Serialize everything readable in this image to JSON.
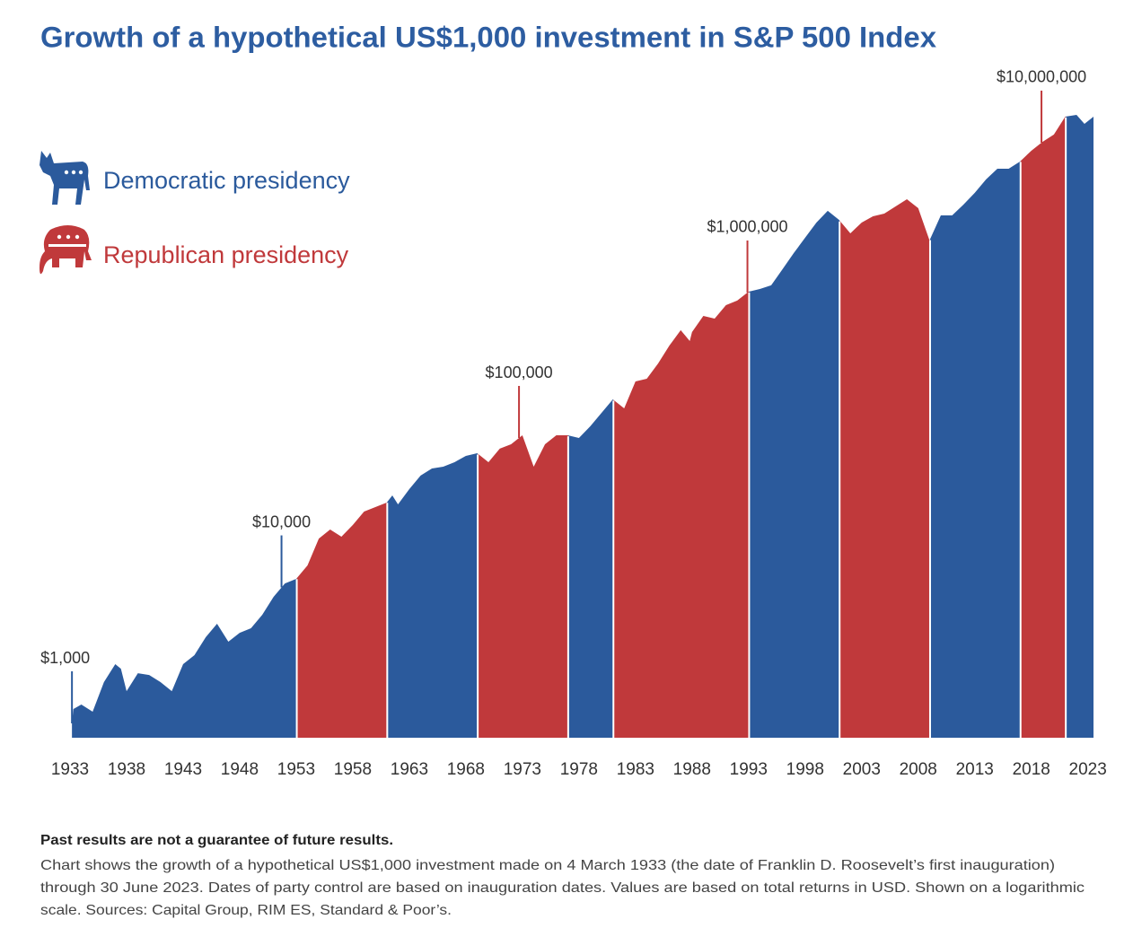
{
  "chart_data": {
    "type": "area",
    "title": "Growth of a hypothetical US$1,000 investment in S&P 500 Index",
    "yscale": "log",
    "xlim": [
      1933,
      2023.5
    ],
    "ylim": [
      800,
      13400000
    ],
    "xticks": [
      1933,
      1938,
      1943,
      1948,
      1953,
      1958,
      1963,
      1968,
      1973,
      1978,
      1983,
      1988,
      1993,
      1998,
      2003,
      2008,
      2013,
      2018,
      2023
    ],
    "x": [
      1933.17,
      1933.3,
      1934,
      1935,
      1936,
      1937,
      1937.5,
      1938,
      1939,
      1940,
      1941,
      1942,
      1943,
      1944,
      1945,
      1946,
      1947,
      1948,
      1949,
      1950,
      1951,
      1952,
      1953,
      1954,
      1955,
      1956,
      1957,
      1958,
      1959,
      1960,
      1961,
      1961.5,
      1962,
      1963,
      1964,
      1965,
      1966,
      1967,
      1968,
      1969,
      1970,
      1971,
      1972,
      1973,
      1974,
      1975,
      1976,
      1977,
      1978,
      1979,
      1980,
      1981,
      1982,
      1983,
      1984,
      1985,
      1986,
      1987,
      1987.8,
      1988,
      1989,
      1990,
      1991,
      1992,
      1993,
      1994,
      1995,
      1996,
      1997,
      1998,
      1999,
      2000,
      2001,
      2002,
      2003,
      2004,
      2005,
      2006,
      2007,
      2008,
      2009,
      2010,
      2011,
      2012,
      2013,
      2014,
      2015,
      2016,
      2017,
      2018,
      2019,
      2020,
      2021,
      2022,
      2022.7,
      2023.5
    ],
    "values": [
      1000,
      1250,
      1340,
      1200,
      1900,
      2510,
      2340,
      1650,
      2180,
      2120,
      1900,
      1650,
      2510,
      2890,
      3820,
      4710,
      3560,
      4090,
      4390,
      5410,
      7160,
      8810,
      9460,
      11660,
      17700,
      20370,
      18230,
      21830,
      26930,
      28900,
      30960,
      34620,
      30130,
      38180,
      47110,
      52640,
      54090,
      58060,
      63990,
      66730,
      58060,
      71610,
      76730,
      88150,
      54090,
      76730,
      88150,
      88150,
      84560,
      101400,
      125000,
      154200,
      134000,
      203800,
      212400,
      269200,
      355700,
      451900,
      382000,
      438700,
      563800,
      540900,
      667000,
      716300,
      822600,
      857700,
      907700,
      1166000,
      1500000,
      1902000,
      2410000,
      2891000,
      2513000,
      2038000,
      2410000,
      2655000,
      2767000,
      3098000,
      3460000,
      3014000,
      1824000,
      2692000,
      2692000,
      3185000,
      3820000,
      4711000,
      5560000,
      5560000,
      6224000,
      7360000,
      8456000,
      9464000,
      12500000,
      12860000,
      11180000,
      12500000
    ],
    "legend": [
      {
        "name": "Democratic presidency",
        "color": "#2b5a9c"
      },
      {
        "name": "Republican presidency",
        "color": "#c0393b"
      }
    ],
    "periods": [
      {
        "legend": 0,
        "start": 1933.17,
        "end": 1953.05
      },
      {
        "legend": 1,
        "start": 1953.05,
        "end": 1961.05
      },
      {
        "legend": 0,
        "start": 1961.05,
        "end": 1969.05
      },
      {
        "legend": 1,
        "start": 1969.05,
        "end": 1977.05
      },
      {
        "legend": 0,
        "start": 1977.05,
        "end": 1981.05
      },
      {
        "legend": 1,
        "start": 1981.05,
        "end": 1993.05
      },
      {
        "legend": 0,
        "start": 1993.05,
        "end": 2001.05
      },
      {
        "legend": 1,
        "start": 2001.05,
        "end": 2009.05
      },
      {
        "legend": 0,
        "start": 2009.05,
        "end": 2017.05
      },
      {
        "legend": 1,
        "start": 2017.05,
        "end": 2021.05
      },
      {
        "legend": 0,
        "start": 2021.05,
        "end": 2023.5
      }
    ],
    "annotations": [
      {
        "label": "$1,000",
        "x": 1933.17,
        "value": 1000
      },
      {
        "label": "$10,000",
        "x": 1951.7,
        "value": 10000
      },
      {
        "label": "$100,000",
        "x": 1972.7,
        "value": 100000
      },
      {
        "label": "$1,000,000",
        "x": 1992.9,
        "value": 1000000
      },
      {
        "label": "$10,000,000",
        "x": 2018.9,
        "value": 10000000
      }
    ],
    "footnote": {
      "heading": "Past results are not a guarantee of future results.",
      "lines": [
        "Chart shows the growth of a hypothetical US$1,000 investment made on 4 March 1933 (the date of Franklin D. Roosevelt’s first inauguration)",
        "through 30 June 2023. Dates of party control are based on inauguration dates. Values are based on total returns in USD. Shown on a logarithmic",
        "scale. Sources: Capital Group, RIM ES, Standard & Poor’s."
      ]
    }
  }
}
